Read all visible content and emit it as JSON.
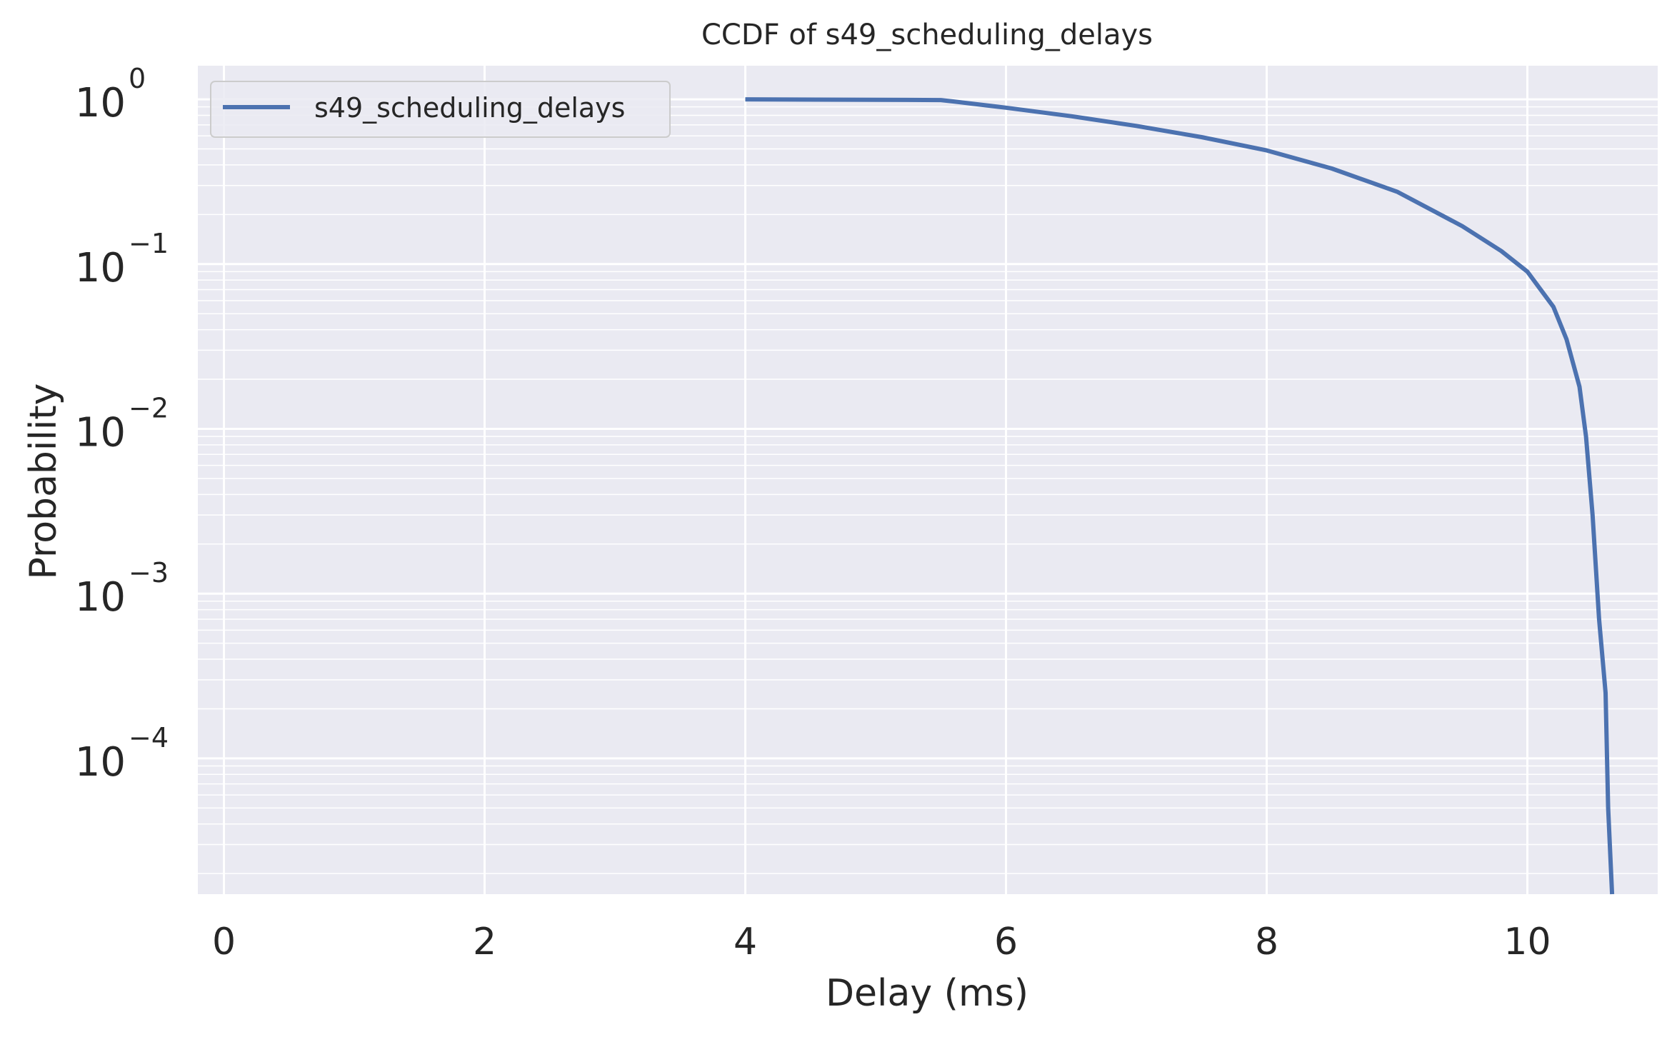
{
  "chart_data": {
    "type": "line",
    "title": "CCDF of s49_scheduling_delays",
    "xlabel": "Delay (ms)",
    "ylabel": "Probability",
    "xlim": [
      -0.2,
      11.0
    ],
    "ylim": [
      1.5e-05,
      1.6
    ],
    "yscale": "log",
    "grid": true,
    "legend_position": "top-left",
    "xticks": [
      0,
      2,
      4,
      6,
      8,
      10
    ],
    "yticks": [
      {
        "base": "10",
        "exp": "0"
      },
      {
        "base": "10",
        "exp": "−1"
      },
      {
        "base": "10",
        "exp": "−2"
      },
      {
        "base": "10",
        "exp": "−3"
      },
      {
        "base": "10",
        "exp": "−4"
      }
    ],
    "series": [
      {
        "name": "s49_scheduling_delays",
        "color": "#4c72b0",
        "x": [
          4.0,
          5.5,
          5.6,
          6.0,
          6.5,
          7.0,
          7.5,
          8.0,
          8.5,
          9.0,
          9.5,
          9.8,
          10.0,
          10.2,
          10.3,
          10.4,
          10.45,
          10.5,
          10.55,
          10.6,
          10.62,
          10.65
        ],
        "y": [
          1.0,
          0.99,
          0.97,
          0.89,
          0.79,
          0.69,
          0.59,
          0.49,
          0.38,
          0.275,
          0.17,
          0.12,
          0.09,
          0.055,
          0.035,
          0.018,
          0.009,
          0.003,
          0.0007,
          0.00025,
          5e-05,
          1.5e-05
        ]
      }
    ]
  }
}
